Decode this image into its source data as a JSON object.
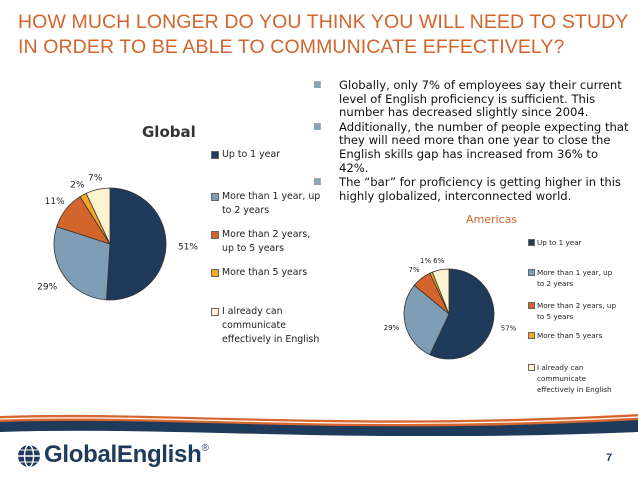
{
  "slide": {
    "title_lines": [
      "HOW MUCH LONGER DO YOU THINK YOU WILL NEED TO STUDY",
      "IN ORDER TO BE ABLE TO COMMUNICATE EFFECTIVELY?"
    ],
    "bullets": [
      "Globally, only 7% of employees say their current level of English proficiency is sufficient. This number has decreased slightly since 2004.",
      "Additionally, the number of people expecting that they will need more than one year to close the English skills gap has increased from 36% to 42%.",
      "The “bar” for proficiency is getting higher in this highly globalized, interconnected world."
    ],
    "bullet_icon": "square-bullet-icon",
    "page_number": "7",
    "logo": {
      "text": "GlobalEnglish",
      "mark": "®",
      "icon": "globe-icon"
    },
    "colors": {
      "title": "#d2642c",
      "americas_title": "#d2642c",
      "band_orange": "#d8662e",
      "band_blue": "#1f3a5a"
    }
  },
  "chart_data": [
    {
      "type": "pie",
      "title": "Global",
      "legend_position": "right",
      "series": [
        {
          "name": "Up to 1 year",
          "value": 51,
          "label": "51%",
          "color": "#1f3a5a"
        },
        {
          "name": "More than 1 year, up to 2 years",
          "value": 29,
          "label": "29%",
          "color": "#7f9db5"
        },
        {
          "name": "More than 2 years, up to 5 years",
          "value": 11,
          "label": "11%",
          "color": "#d2642c"
        },
        {
          "name": "More than 5 years",
          "value": 2,
          "label": "2%",
          "color": "#f5a623"
        },
        {
          "name": "I already can communicate effectively in English",
          "value": 7,
          "label": "7%",
          "color": "#fdf3d0"
        }
      ]
    },
    {
      "type": "pie",
      "title": "Americas",
      "legend_position": "right",
      "series": [
        {
          "name": "Up to 1 year",
          "value": 57,
          "label": "57%",
          "color": "#1f3a5a"
        },
        {
          "name": "More than 1 year, up to 2 years",
          "value": 29,
          "label": "29%",
          "color": "#7f9db5"
        },
        {
          "name": "More than 2 years, up to 5 years",
          "value": 7,
          "label": "7%",
          "color": "#d2642c"
        },
        {
          "name": "More than 5 years",
          "value": 1,
          "label": "1%",
          "color": "#f5a623"
        },
        {
          "name": "I already can communicate effectively in English",
          "value": 6,
          "label": "6%",
          "color": "#fdf3d0"
        }
      ]
    }
  ]
}
